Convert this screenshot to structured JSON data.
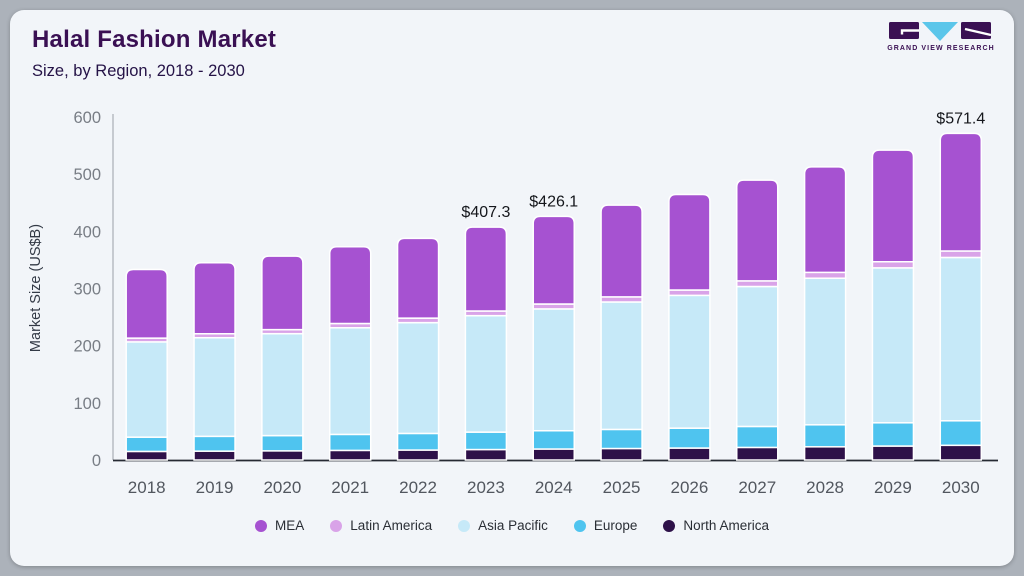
{
  "header": {
    "title": "Halal Fashion Market",
    "subtitle": "Size, by Region, 2018 - 2030",
    "logo_text": "GRAND VIEW RESEARCH"
  },
  "theme": {
    "frame_bg": "#acb2ba",
    "card_bg": "#f2f5f9",
    "title_color": "#3a1053",
    "subtitle_color": "#251347",
    "logo_purple": "#3a1053",
    "logo_blue": "#5bc6ea",
    "axis_text": "#787d85",
    "year_text": "#52575f",
    "data_label_text": "#15171c"
  },
  "chart_data": {
    "type": "bar",
    "stacked": true,
    "title": "Halal Fashion Market",
    "subtitle": "Size, by Region, 2018 - 2030",
    "xlabel": "",
    "ylabel": "Market Size (US$B)",
    "ylim": [
      0,
      600
    ],
    "yticks": [
      0,
      100,
      200,
      300,
      400,
      500,
      600
    ],
    "grid": false,
    "legend_position": "bottom",
    "categories": [
      "2018",
      "2019",
      "2020",
      "2021",
      "2022",
      "2023",
      "2024",
      "2025",
      "2026",
      "2027",
      "2028",
      "2029",
      "2030"
    ],
    "series": [
      {
        "name": "North America",
        "color": "#2e1149",
        "values": [
          15.0,
          15.5,
          16.0,
          16.8,
          17.4,
          18.3,
          19.2,
          20.1,
          20.9,
          22.0,
          23.1,
          24.4,
          25.7
        ]
      },
      {
        "name": "Europe",
        "color": "#4fc4ef",
        "values": [
          25.0,
          25.9,
          26.7,
          28.0,
          29.1,
          30.5,
          32.0,
          33.4,
          34.8,
          36.7,
          38.5,
          40.7,
          42.9
        ]
      },
      {
        "name": "Asia Pacific",
        "color": "#c6e9f8",
        "values": [
          166.6,
          172.5,
          178.3,
          186.5,
          193.8,
          203.7,
          213.1,
          222.9,
          232.3,
          244.8,
          256.4,
          271.0,
          285.7
        ]
      },
      {
        "name": "Latin America",
        "color": "#d9a3e8",
        "values": [
          6.7,
          6.9,
          7.1,
          7.5,
          7.8,
          8.1,
          8.5,
          8.9,
          9.3,
          9.8,
          10.3,
          10.8,
          11.4
        ]
      },
      {
        "name": "MEA",
        "color": "#a652d1",
        "values": [
          119.9,
          124.2,
          128.5,
          134.2,
          139.5,
          146.7,
          153.3,
          160.5,
          167.2,
          176.2,
          184.5,
          195.1,
          205.7
        ]
      }
    ],
    "totals": [
      333.2,
      345.0,
      356.6,
      373.0,
      387.6,
      407.3,
      426.1,
      445.8,
      464.5,
      489.5,
      512.8,
      542.0,
      571.4
    ],
    "bar_labels": [
      "",
      "",
      "",
      "",
      "",
      "$407.3",
      "$426.1",
      "",
      "",
      "",
      "",
      "",
      "$571.4"
    ],
    "legend": [
      {
        "label": "MEA",
        "color": "#a652d1"
      },
      {
        "label": "Latin America",
        "color": "#d9a3e8"
      },
      {
        "label": "Asia Pacific",
        "color": "#c6e9f8"
      },
      {
        "label": "Europe",
        "color": "#4fc4ef"
      },
      {
        "label": "North America",
        "color": "#2e1149"
      }
    ]
  }
}
